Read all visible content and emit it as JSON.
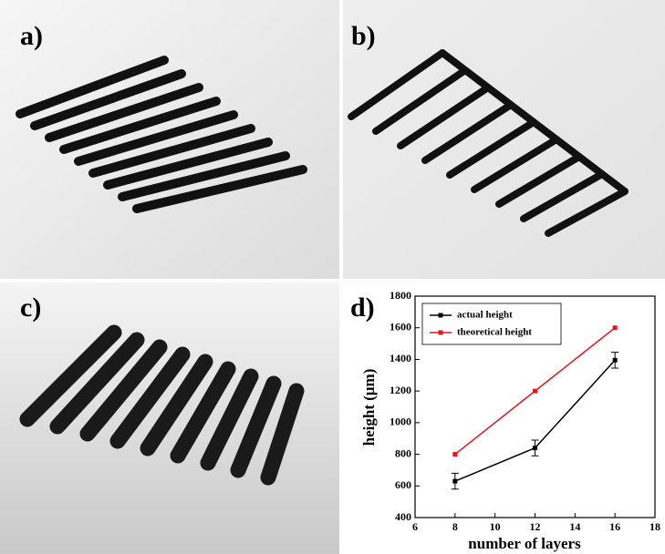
{
  "panels": [
    "a)",
    "b)",
    "c)",
    "d)"
  ],
  "chart_data": {
    "type": "line",
    "x": [
      8,
      12,
      16
    ],
    "x_label": "number of layers",
    "y_label": "height (μm)",
    "xlim": [
      6,
      18
    ],
    "xticks": [
      6,
      8,
      10,
      12,
      14,
      16,
      18
    ],
    "ylim": [
      400,
      1800
    ],
    "yticks": [
      400,
      600,
      800,
      1000,
      1200,
      1400,
      1600,
      1800
    ],
    "legend": "upper-left",
    "series": [
      {
        "name": "actual height",
        "color": "#000000",
        "values": [
          630,
          840,
          1395
        ],
        "errors": [
          50,
          50,
          50
        ]
      },
      {
        "name": "theoretical height",
        "color": "#e8141b",
        "values": [
          800,
          1200,
          1600
        ]
      }
    ]
  }
}
